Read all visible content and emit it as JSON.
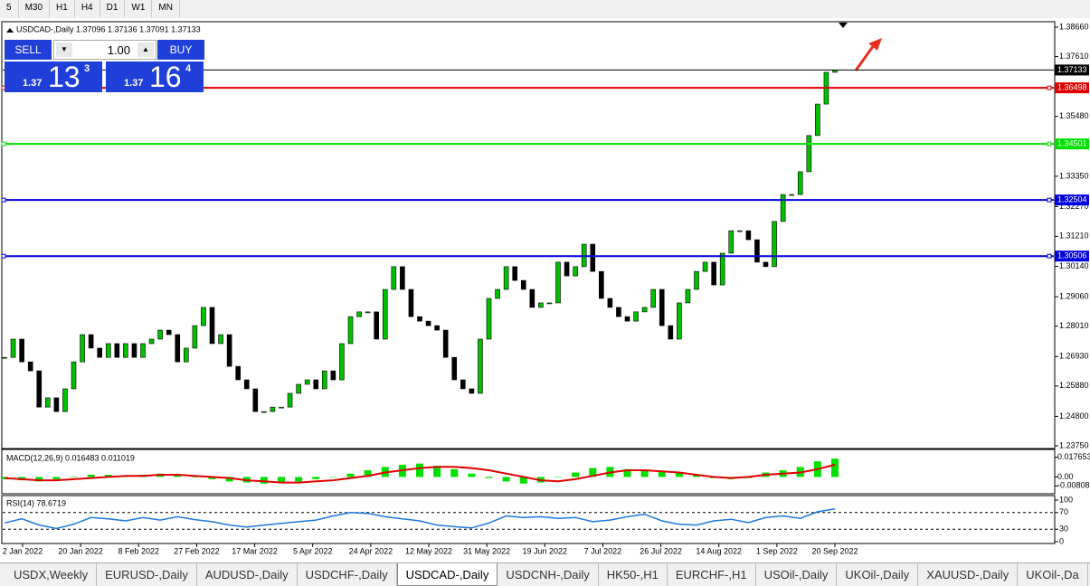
{
  "toolbar": {
    "timeframes": [
      "5",
      "M30",
      "H1",
      "H4",
      "D1",
      "W1",
      "MN"
    ]
  },
  "chart_header": "USDCAD-,Daily 1.37096 1.37136 1.37091 1.37133",
  "trade_panel": {
    "sell": "SELL",
    "buy": "BUY",
    "lot": "1.00",
    "sell_price": {
      "prefix": "1.37",
      "main": "13",
      "sup": "3"
    },
    "buy_price": {
      "prefix": "1.37",
      "main": "16",
      "sup": "4"
    }
  },
  "chart_data": [
    {
      "type": "candlestick",
      "up_color": "#00c000",
      "down_color": "#000000",
      "closes": [
        1.269,
        1.2755,
        1.2674,
        1.2642,
        1.2513,
        1.2546,
        1.2497,
        1.2578,
        1.2674,
        1.2771,
        1.2723,
        1.269,
        1.2739,
        1.269,
        1.2739,
        1.269,
        1.2739,
        1.2755,
        1.2787,
        1.2771,
        1.2674,
        1.2723,
        1.2803,
        1.2868,
        1.2739,
        1.2771,
        1.2658,
        1.261,
        1.2578,
        1.2497,
        1.2497,
        1.2513,
        1.2513,
        1.2562,
        1.2594,
        1.261,
        1.2578,
        1.2642,
        1.261,
        1.2739,
        1.2835,
        1.2852,
        1.2852,
        1.2755,
        1.2932,
        1.3013,
        1.2932,
        1.2835,
        1.2819,
        1.2803,
        1.2787,
        1.269,
        1.261,
        1.2578,
        1.2562,
        1.2755,
        1.29,
        1.2932,
        1.3013,
        1.2964,
        1.2932,
        1.2868,
        1.2884,
        1.2884,
        1.3029,
        1.298,
        1.3013,
        1.3093,
        1.2996,
        1.29,
        1.2868,
        1.2835,
        1.2819,
        1.2852,
        1.2868,
        1.2932,
        1.2803,
        1.2755,
        1.2884,
        1.2932,
        1.2996,
        1.3029,
        1.2948,
        1.3061,
        1.3141,
        1.3141,
        1.3109,
        1.3029,
        1.3013,
        1.3174,
        1.327,
        1.327,
        1.3351,
        1.348,
        1.3592,
        1.3705,
        1.37133
      ],
      "ylim": [
        1.2375,
        1.3866
      ],
      "yticks": [
        {
          "value": 1.3866,
          "label": "1.38660"
        },
        {
          "value": 1.3761,
          "label": "1.37610"
        },
        {
          "value": 1.3548,
          "label": "1.35480"
        },
        {
          "value": 1.3335,
          "label": "1.33350"
        },
        {
          "value": 1.3227,
          "label": "1.32270"
        },
        {
          "value": 1.3121,
          "label": "1.31210"
        },
        {
          "value": 1.3014,
          "label": "1.30140"
        },
        {
          "value": 1.2906,
          "label": "1.29060"
        },
        {
          "value": 1.2801,
          "label": "1.28010"
        },
        {
          "value": 1.2693,
          "label": "1.26930"
        },
        {
          "value": 1.2588,
          "label": "1.25880"
        },
        {
          "value": 1.248,
          "label": "1.24800"
        },
        {
          "value": 1.2375,
          "label": "1.23750"
        }
      ],
      "levels": [
        {
          "value": 1.37133,
          "color": "#000000"
        },
        {
          "value": 1.36498,
          "color": "#e00000"
        },
        {
          "value": 1.34501,
          "color": "#00e000"
        },
        {
          "value": 1.32504,
          "color": "#0000e0"
        },
        {
          "value": 1.30506,
          "color": "#0000e0"
        }
      ],
      "x_labels": [
        "2 Jan 2022",
        "20 Jan 2022",
        "8 Feb 2022",
        "27 Feb 2022",
        "17 Mar 2022",
        "5 Apr 2022",
        "24 Apr 2022",
        "12 May 2022",
        "31 May 2022",
        "19 Jun 2022",
        "7 Jul 2022",
        "26 Jul 2022",
        "14 Aug 2022",
        "1 Sep 2022",
        "20 Sep 2022"
      ]
    },
    {
      "type": "macd",
      "title": "MACD(12,26,9) 0.016483 0.011019",
      "hist_color": "#00e000",
      "signal_color": "#e00000",
      "histogram": [
        -0.002,
        -0.003,
        -0.004,
        -0.002,
        0,
        0.002,
        0.002,
        0.001,
        0.002,
        0.003,
        0.002,
        0,
        -0.002,
        -0.004,
        -0.005,
        -0.006,
        -0.005,
        -0.004,
        -0.002,
        0,
        0.003,
        0.006,
        0.009,
        0.011,
        0.012,
        0.01,
        0.007,
        0.003,
        -0.001,
        -0.004,
        -0.006,
        -0.005,
        0,
        0.004,
        0.008,
        0.009,
        0.007,
        0.006,
        0.005,
        0.004,
        0.002,
        -0.001,
        -0.002,
        -0.001,
        0.004,
        0.006,
        0.009,
        0.014,
        0.016483
      ],
      "signal": [
        -0.001,
        -0.002,
        -0.003,
        -0.003,
        -0.002,
        -0.001,
        0,
        0.001,
        0.001,
        0.002,
        0.002,
        0.001,
        0,
        -0.001,
        -0.003,
        -0.004,
        -0.005,
        -0.005,
        -0.004,
        -0.003,
        -0.001,
        0.001,
        0.004,
        0.006,
        0.008,
        0.009,
        0.009,
        0.008,
        0.006,
        0.003,
        0,
        -0.003,
        -0.004,
        -0.002,
        0.001,
        0.004,
        0.006,
        0.006,
        0.005,
        0.004,
        0.002,
        0,
        -0.001,
        0,
        0.002,
        0.003,
        0.004,
        0.007,
        0.011019
      ],
      "ylim": [
        -0.0143,
        0.0231
      ],
      "yticks": [
        0.017653,
        {
          "value": 0,
          "label": "0.00"
        },
        -0.00808
      ]
    },
    {
      "type": "rsi",
      "title": "RSI(14) 78.6719",
      "color": "#1e78dc",
      "values": [
        45,
        55,
        40,
        32,
        42,
        58,
        55,
        50,
        58,
        52,
        60,
        53,
        48,
        40,
        35,
        40,
        44,
        48,
        52,
        62,
        70,
        68,
        60,
        55,
        50,
        40,
        36,
        33,
        45,
        62,
        58,
        60,
        56,
        58,
        48,
        52,
        60,
        66,
        50,
        42,
        40,
        50,
        54,
        46,
        58,
        62,
        56,
        72,
        78.6719
      ],
      "ylim": [
        0,
        100
      ],
      "yticks": [
        100,
        70,
        30,
        0
      ],
      "levels": [
        70,
        30
      ]
    }
  ],
  "tabs": [
    "USDX,Weekly",
    "EURUSD-,Daily",
    "AUDUSD-,Daily",
    "USDCHF-,Daily",
    "USDCAD-,Daily",
    "USDCNH-,Daily",
    "HK50-,H1",
    "EURCHF-,H1",
    "USOil-,Daily",
    "UKOil-,Daily",
    "XAUUSD-,Daily",
    "UKOil-,Da"
  ],
  "active_tab": 4
}
